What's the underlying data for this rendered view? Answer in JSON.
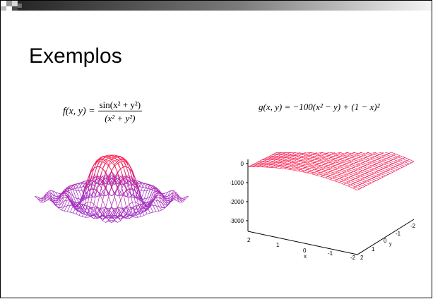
{
  "slide": {
    "title": "Exemplos",
    "colors": {
      "accent_dark": "#1f1f1f",
      "accent_light": "#e6e6e6",
      "mesh_purple": "#9a2cc9",
      "mesh_red": "#ff1a4a"
    }
  },
  "equations": {
    "f": {
      "lhs": "f(x, y) =",
      "numerator": "sin(x² + y²)",
      "denominator": "(x² + y²)"
    },
    "g": {
      "text": "g(x, y) = −100(x² − y) + (1 − x)²"
    }
  },
  "plot_g": {
    "z_ticks": [
      "0",
      "-1000",
      "-2000",
      "-3000"
    ],
    "x_ticks": [
      "2",
      "1",
      "0",
      "-1",
      "-2"
    ],
    "y_ticks": [
      "2",
      "1",
      "0",
      "-1",
      "-2"
    ],
    "x_label": "x",
    "y_label": "y"
  }
}
